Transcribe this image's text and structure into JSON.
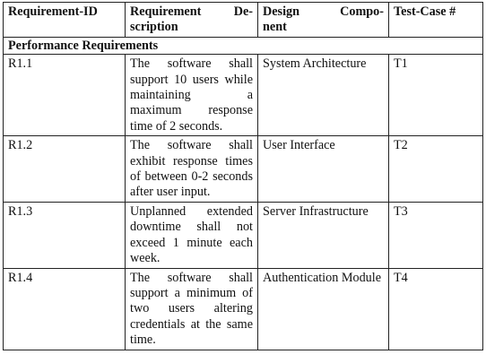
{
  "headers": {
    "id": [
      "Requirement-ID"
    ],
    "description": [
      "Requirement De-",
      "scription"
    ],
    "component": [
      "Design Compo-",
      "nent"
    ],
    "test": [
      "Test-Case #"
    ]
  },
  "section": "Performance Requirements",
  "rows": [
    {
      "id": "R1.1",
      "description": "The software shall support 10 users while maintaining a maximum response time of 2 seconds.",
      "component": "System Architecture",
      "test": "T1"
    },
    {
      "id": "R1.2",
      "description": "The software shall exhibit response times of between 0-2 seconds after user input.",
      "component": "User Interface",
      "test": "T2"
    },
    {
      "id": "R1.3",
      "description": "Unplanned extended downtime shall not exceed 1 minute each week.",
      "component": "Server Infrastructure",
      "test": "T3"
    },
    {
      "id": "R1.4",
      "description": "The software shall support a minimum of two users altering credentials at the same time.",
      "component": "Authentication Module",
      "test": "T4"
    }
  ]
}
